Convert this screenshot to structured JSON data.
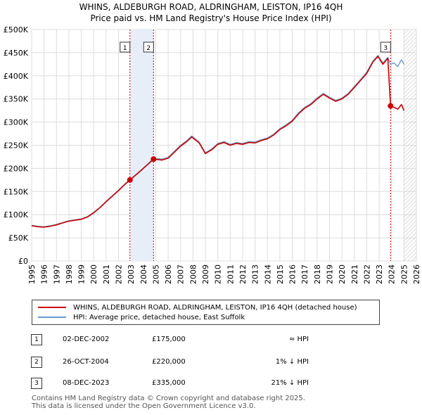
{
  "title_line1": "WHINS, ALDEBURGH ROAD, ALDRINGHAM, LEISTON, IP16 4QH",
  "title_line2": "Price paid vs. HM Land Registry's House Price Index (HPI)",
  "colors": {
    "property": "#cc0000",
    "hpi": "#6699cc",
    "band": "#e8eef8",
    "future_hatch": "#bbbbbb"
  },
  "chart_data": {
    "type": "line",
    "title": "Price paid vs. HM Land Registry's House Price Index (HPI)",
    "xlabel": "",
    "ylabel": "",
    "xlim": [
      1995,
      2026
    ],
    "ylim": [
      0,
      500000
    ],
    "x_ticks": [
      "1995",
      "1996",
      "1997",
      "1998",
      "1999",
      "2000",
      "2001",
      "2002",
      "2003",
      "2004",
      "2005",
      "2006",
      "2007",
      "2008",
      "2009",
      "2010",
      "2011",
      "2012",
      "2013",
      "2014",
      "2015",
      "2016",
      "2017",
      "2018",
      "2019",
      "2020",
      "2021",
      "2022",
      "2023",
      "2024",
      "2025",
      "2026"
    ],
    "y_ticks": [
      {
        "value": 0,
        "label": "£0"
      },
      {
        "value": 50000,
        "label": "£50K"
      },
      {
        "value": 100000,
        "label": "£100K"
      },
      {
        "value": 150000,
        "label": "£150K"
      },
      {
        "value": 200000,
        "label": "£200K"
      },
      {
        "value": 250000,
        "label": "£250K"
      },
      {
        "value": 300000,
        "label": "£300K"
      },
      {
        "value": 350000,
        "label": "£350K"
      },
      {
        "value": 400000,
        "label": "£400K"
      },
      {
        "value": 450000,
        "label": "£450K"
      },
      {
        "value": 500000,
        "label": "£500K"
      }
    ],
    "grid": true,
    "series": [
      {
        "name": "WHINS, ALDEBURGH ROAD, ALDRINGHAM, LEISTON, IP16 4QH (detached house)",
        "x": [
          1995.0,
          1995.5,
          1996.0,
          1996.5,
          1997.0,
          1997.5,
          1998.0,
          1998.5,
          1999.0,
          1999.5,
          2000.0,
          2000.5,
          2001.0,
          2001.5,
          2002.0,
          2002.5,
          2002.92,
          2003.5,
          2004.0,
          2004.5,
          2004.82,
          2005.5,
          2006.0,
          2006.5,
          2007.0,
          2007.5,
          2007.9,
          2008.5,
          2009.0,
          2009.5,
          2010.0,
          2010.5,
          2011.0,
          2011.5,
          2012.0,
          2012.5,
          2013.0,
          2013.5,
          2014.0,
          2014.5,
          2015.0,
          2015.5,
          2016.0,
          2016.5,
          2017.0,
          2017.5,
          2018.0,
          2018.5,
          2019.0,
          2019.5,
          2020.0,
          2020.5,
          2021.0,
          2021.5,
          2022.0,
          2022.5,
          2022.9,
          2023.3,
          2023.7,
          2023.92,
          2024.2,
          2024.5,
          2024.8,
          2025.0
        ],
        "y": [
          76000,
          74000,
          73000,
          75000,
          78000,
          82000,
          86000,
          88000,
          90000,
          95000,
          104000,
          115000,
          128000,
          140000,
          152000,
          165000,
          175000,
          188000,
          200000,
          212000,
          220000,
          218000,
          222000,
          235000,
          248000,
          258000,
          268000,
          255000,
          232000,
          240000,
          252000,
          256000,
          250000,
          254000,
          252000,
          256000,
          255000,
          260000,
          264000,
          272000,
          284000,
          292000,
          302000,
          318000,
          330000,
          338000,
          350000,
          360000,
          352000,
          345000,
          350000,
          360000,
          375000,
          390000,
          405000,
          430000,
          442000,
          425000,
          438000,
          335000,
          332000,
          328000,
          338000,
          325000
        ]
      },
      {
        "name": "HPI: Average price, detached house, East Suffolk",
        "x": [
          1995.0,
          1995.5,
          1996.0,
          1996.5,
          1997.0,
          1997.5,
          1998.0,
          1998.5,
          1999.0,
          1999.5,
          2000.0,
          2000.5,
          2001.0,
          2001.5,
          2002.0,
          2002.5,
          2002.92,
          2003.5,
          2004.0,
          2004.5,
          2004.82,
          2005.5,
          2006.0,
          2006.5,
          2007.0,
          2007.5,
          2007.9,
          2008.5,
          2009.0,
          2009.5,
          2010.0,
          2010.5,
          2011.0,
          2011.5,
          2012.0,
          2012.5,
          2013.0,
          2013.5,
          2014.0,
          2014.5,
          2015.0,
          2015.5,
          2016.0,
          2016.5,
          2017.0,
          2017.5,
          2018.0,
          2018.5,
          2019.0,
          2019.5,
          2020.0,
          2020.5,
          2021.0,
          2021.5,
          2022.0,
          2022.5,
          2022.9,
          2023.3,
          2023.7,
          2023.92,
          2024.2,
          2024.5,
          2024.8,
          2025.0
        ],
        "y": [
          77000,
          75000,
          74000,
          76000,
          79000,
          83000,
          87000,
          89000,
          91000,
          96000,
          105000,
          116000,
          129000,
          141000,
          153000,
          166000,
          176000,
          189000,
          201000,
          213000,
          222000,
          220000,
          224000,
          237000,
          250000,
          260000,
          270000,
          257000,
          234000,
          242000,
          254000,
          258000,
          252000,
          256000,
          254000,
          258000,
          257000,
          262000,
          266000,
          274000,
          286000,
          294000,
          304000,
          320000,
          332000,
          340000,
          352000,
          362000,
          354000,
          347000,
          352000,
          362000,
          377000,
          392000,
          408000,
          432000,
          444000,
          428000,
          440000,
          425000,
          428000,
          420000,
          435000,
          425000
        ]
      }
    ],
    "transactions": [
      {
        "marker": "1",
        "x": 2002.92,
        "y": 175000,
        "date": "02-DEC-2002",
        "price": "£175,000",
        "hpi": "≈ HPI"
      },
      {
        "marker": "2",
        "x": 2004.82,
        "y": 220000,
        "date": "26-OCT-2004",
        "price": "£220,000",
        "hpi": "1% ↓ HPI"
      },
      {
        "marker": "3",
        "x": 2023.92,
        "y": 335000,
        "date": "08-DEC-2023",
        "price": "£335,000",
        "hpi": "21% ↓ HPI"
      }
    ],
    "shaded_band": [
      2002.92,
      2004.82
    ],
    "forecast_from": 2025.0
  },
  "legend": {
    "property": "WHINS, ALDEBURGH ROAD, ALDRINGHAM, LEISTON, IP16 4QH (detached house)",
    "hpi": "HPI: Average price, detached house, East Suffolk"
  },
  "footer": {
    "line1": "Contains HM Land Registry data © Crown copyright and database right 2025.",
    "line2": "This data is licensed under the Open Government Licence v3.0."
  }
}
